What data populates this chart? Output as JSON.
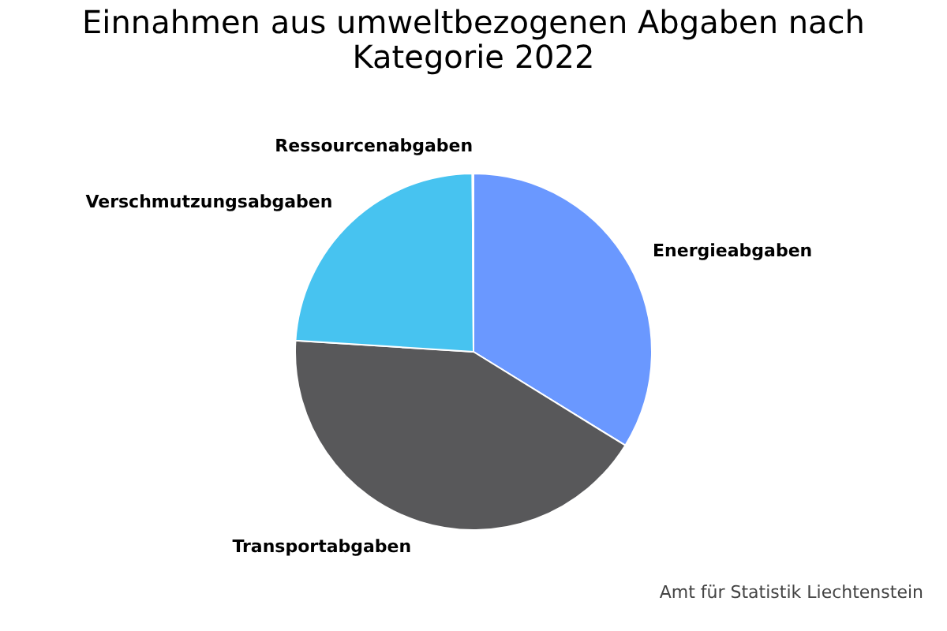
{
  "chart_data": {
    "type": "pie",
    "title": [
      "Einnahmen aus umweltbezogenen Abgaben nach",
      "Kategorie 2022"
    ],
    "categories": [
      "Energieabgaben",
      "Transportabgaben",
      "Verschmutzungsabgaben",
      "Ressourcenabgaben"
    ],
    "values": [
      33.8,
      42.2,
      23.9,
      0.1
    ],
    "colors": [
      "#6a98ff",
      "#58585a",
      "#47c3f0",
      "#f5b335"
    ],
    "annotations": [
      "Amt für Statistik Liechtenstein"
    ],
    "legend": false
  }
}
